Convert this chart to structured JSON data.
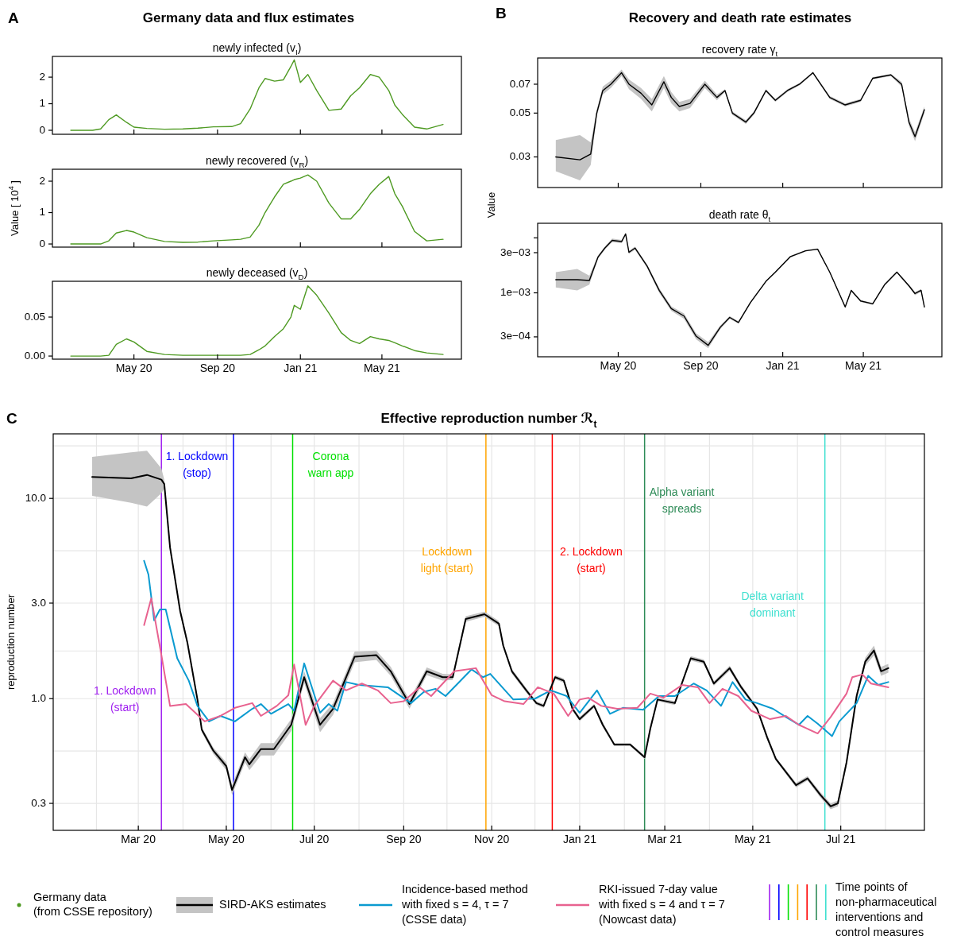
{
  "chart_data": [
    {
      "type": "line",
      "title": "newly infected (v$_{I}$)",
      "annotations": [
        "A",
        "Germany data and flux estimates"
      ],
      "legend": "bottom",
      "tick_labels": "y",
      "xlim": [
        "2020-01-02",
        "2021-08-26"
      ],
      "xticks": [
        {
          "value": "2020-05-01",
          "label": null
        },
        {
          "value": "2020-09-01",
          "label": null
        },
        {
          "value": "2021-01-01",
          "label": null
        },
        {
          "value": "2021-05-01",
          "label": null
        }
      ],
      "ylim": [
        -0.15,
        2.78
      ],
      "yticks": [
        0,
        1,
        2
      ],
      "x": [
        "2020-01-29",
        "2020-03-01",
        "2020-03-13",
        "2020-03-25",
        "2020-04-05",
        "2020-04-20",
        "2020-05-01",
        "2020-05-20",
        "2020-06-15",
        "2020-07-12",
        "2020-08-03",
        "2020-08-26",
        "2020-09-22",
        "2020-10-05",
        "2020-10-19",
        "2020-11-01",
        "2020-11-10",
        "2020-11-24",
        "2020-12-07",
        "2020-12-18",
        "2020-12-23",
        "2021-01-01",
        "2021-01-12",
        "2021-01-25",
        "2021-02-12",
        "2021-03-02",
        "2021-03-16",
        "2021-03-29",
        "2021-04-14",
        "2021-04-27",
        "2021-05-11",
        "2021-05-20",
        "2021-05-31",
        "2021-06-18",
        "2021-07-06",
        "2021-07-30"
      ],
      "series": [
        {
          "name": "Germany data\n(from CSSE repository)",
          "color": "#4e9a22",
          "values": [
            0,
            0,
            0.05,
            0.4,
            0.58,
            0.3,
            0.12,
            0.07,
            0.04,
            0.05,
            0.08,
            0.13,
            0.14,
            0.25,
            0.8,
            1.6,
            1.95,
            1.85,
            1.9,
            2.4,
            2.65,
            1.8,
            2.1,
            1.5,
            0.75,
            0.8,
            1.3,
            1.6,
            2.1,
            2.0,
            1.5,
            0.95,
            0.6,
            0.12,
            0.05,
            0.22
          ]
        }
      ]
    },
    {
      "type": "line",
      "title": "newly recovered (v$_{R}$)",
      "ylabel": "Value [ 10$^{4}$ ]",
      "tick_labels": "y",
      "xlim": [
        "2020-01-02",
        "2021-08-26"
      ],
      "xticks": [
        {
          "value": "2020-05-01",
          "label": null
        },
        {
          "value": "2020-09-01",
          "label": null
        },
        {
          "value": "2021-01-01",
          "label": null
        },
        {
          "value": "2021-05-01",
          "label": null
        }
      ],
      "ylim": [
        -0.1,
        2.38
      ],
      "yticks": [
        0,
        1,
        2
      ],
      "x": [
        "2020-01-29",
        "2020-03-01",
        "2020-03-13",
        "2020-03-25",
        "2020-04-05",
        "2020-04-20",
        "2020-05-01",
        "2020-05-20",
        "2020-06-15",
        "2020-07-12",
        "2020-08-03",
        "2020-08-26",
        "2020-09-22",
        "2020-10-05",
        "2020-10-19",
        "2020-11-01",
        "2020-11-10",
        "2020-11-24",
        "2020-12-07",
        "2020-12-18",
        "2020-12-23",
        "2021-01-01",
        "2021-01-12",
        "2021-01-25",
        "2021-02-12",
        "2021-03-02",
        "2021-03-16",
        "2021-03-29",
        "2021-04-14",
        "2021-04-27",
        "2021-05-11",
        "2021-05-20",
        "2021-05-31",
        "2021-06-18",
        "2021-07-06",
        "2021-07-30"
      ],
      "series": [
        {
          "color": "#4e9a22",
          "values": [
            0,
            0,
            0,
            0.1,
            0.35,
            0.43,
            0.38,
            0.2,
            0.08,
            0.05,
            0.06,
            0.1,
            0.13,
            0.15,
            0.22,
            0.6,
            1.0,
            1.5,
            1.9,
            2.0,
            2.05,
            2.1,
            2.2,
            2.0,
            1.3,
            0.8,
            0.8,
            1.1,
            1.6,
            1.9,
            2.15,
            1.6,
            1.2,
            0.4,
            0.1,
            0.15
          ]
        }
      ]
    },
    {
      "type": "line",
      "title": "newly deceased (v$_{D}$)",
      "xlim": [
        "2020-01-02",
        "2021-08-26"
      ],
      "xticks": [
        {
          "value": "2020-05-01",
          "label": "May 20"
        },
        {
          "value": "2020-09-01",
          "label": "Sep 20"
        },
        {
          "value": "2021-01-01",
          "label": "Jan 21"
        },
        {
          "value": "2021-05-01",
          "label": "May 21"
        }
      ],
      "ylim": [
        -0.004,
        0.0959
      ],
      "yticks": [
        {
          "value": 0,
          "label": "0.00"
        },
        {
          "value": 0.05,
          "label": "0.05"
        }
      ],
      "x": [
        "2020-01-29",
        "2020-03-01",
        "2020-03-13",
        "2020-03-25",
        "2020-04-05",
        "2020-04-20",
        "2020-05-01",
        "2020-05-20",
        "2020-06-15",
        "2020-07-12",
        "2020-08-03",
        "2020-08-26",
        "2020-09-22",
        "2020-10-05",
        "2020-10-19",
        "2020-11-01",
        "2020-11-10",
        "2020-11-24",
        "2020-12-07",
        "2020-12-18",
        "2020-12-23",
        "2021-01-01",
        "2021-01-12",
        "2021-01-25",
        "2021-02-12",
        "2021-03-02",
        "2021-03-16",
        "2021-03-29",
        "2021-04-14",
        "2021-04-27",
        "2021-05-11",
        "2021-05-20",
        "2021-05-31",
        "2021-06-18",
        "2021-07-06",
        "2021-07-30"
      ],
      "series": [
        {
          "color": "#4e9a22",
          "values": [
            0,
            0,
            0,
            0.001,
            0.015,
            0.022,
            0.018,
            0.006,
            0.002,
            0.001,
            0.001,
            0.001,
            0.001,
            0.001,
            0.002,
            0.008,
            0.013,
            0.025,
            0.035,
            0.05,
            0.065,
            0.06,
            0.09,
            0.078,
            0.055,
            0.03,
            0.02,
            0.016,
            0.025,
            0.022,
            0.02,
            0.017,
            0.013,
            0.007,
            0.004,
            0.002
          ]
        }
      ]
    },
    {
      "type": "line",
      "title": "recovery rate γ$_{t}$",
      "annotations": [
        "B",
        "Recovery and death rate estimates"
      ],
      "log": "y",
      "tick_labels": "y",
      "xlim": [
        "2020-01-02",
        "2021-08-26"
      ],
      "xticks": [
        {
          "value": "2020-05-01",
          "label": null
        },
        {
          "value": "2020-09-01",
          "label": null
        },
        {
          "value": "2021-01-01",
          "label": null
        },
        {
          "value": "2021-05-01",
          "label": null
        }
      ],
      "ylim": [
        0.021,
        0.095
      ],
      "yticks": [
        0.03,
        0.05,
        0.07
      ],
      "x": [
        "2020-01-29",
        "2020-03-05",
        "2020-03-21",
        "2020-03-30",
        "2020-04-08",
        "2020-04-20",
        "2020-05-06",
        "2020-05-17",
        "2020-06-04",
        "2020-06-20",
        "2020-07-08",
        "2020-07-19",
        "2020-07-31",
        "2020-08-16",
        "2020-09-07",
        "2020-09-25",
        "2020-10-07",
        "2020-10-18",
        "2020-11-07",
        "2020-11-19",
        "2020-12-07",
        "2020-12-21",
        "2021-01-08",
        "2021-01-26",
        "2021-02-15",
        "2021-03-12",
        "2021-04-04",
        "2021-04-27",
        "2021-05-15",
        "2021-06-11",
        "2021-06-27",
        "2021-07-08",
        "2021-07-17",
        "2021-07-31"
      ],
      "series": [
        {
          "color": "#000000",
          "values": [
            0.03,
            0.029,
            0.031,
            0.05,
            0.065,
            0.07,
            0.08,
            0.07,
            0.063,
            0.055,
            0.072,
            0.06,
            0.054,
            0.056,
            0.07,
            0.06,
            0.065,
            0.05,
            0.045,
            0.05,
            0.065,
            0.058,
            0.065,
            0.07,
            0.08,
            0.06,
            0.055,
            0.058,
            0.075,
            0.078,
            0.07,
            0.045,
            0.038,
            0.052
          ],
          "lower": [
            0.0254,
            0.0228,
            0.0273,
            0.048,
            0.062,
            0.067,
            0.077,
            0.066,
            0.059,
            0.051,
            0.067,
            0.056,
            0.051,
            0.053,
            0.067,
            0.058,
            0.064,
            0.049,
            0.044,
            0.049,
            0.064,
            0.057,
            0.064,
            0.069,
            0.079,
            0.059,
            0.054,
            0.057,
            0.074,
            0.077,
            0.068,
            0.043,
            0.036,
            0.05
          ],
          "upper": [
            0.0365,
            0.0387,
            0.0355,
            0.052,
            0.068,
            0.073,
            0.083,
            0.074,
            0.067,
            0.059,
            0.077,
            0.064,
            0.057,
            0.059,
            0.073,
            0.062,
            0.066,
            0.051,
            0.046,
            0.051,
            0.066,
            0.059,
            0.066,
            0.071,
            0.081,
            0.061,
            0.056,
            0.059,
            0.076,
            0.079,
            0.072,
            0.047,
            0.04,
            0.054
          ]
        }
      ]
    },
    {
      "type": "line",
      "title": "death rate θ$_{t}$",
      "ylabel": "Value",
      "log": "y",
      "xlim": [
        "2020-01-02",
        "2021-08-26"
      ],
      "xticks": [
        {
          "value": "2020-05-01",
          "label": "May 20"
        },
        {
          "value": "2020-09-01",
          "label": "Sep 20"
        },
        {
          "value": "2021-01-01",
          "label": "Jan 21"
        },
        {
          "value": "2021-05-01",
          "label": "May 21"
        }
      ],
      "ylim": [
        0.000174,
        0.0067
      ],
      "yticks": [
        {
          "value": 0.0003,
          "label": "3e−04"
        },
        {
          "value": 0.001,
          "label": "1e−03"
        },
        {
          "value": 0.003,
          "label": "3e−03"
        },
        {
          "value": 0.0045,
          "label": null
        }
      ],
      "x": [
        "2020-01-29",
        "2020-03-01",
        "2020-03-19",
        "2020-04-01",
        "2020-04-11",
        "2020-04-22",
        "2020-05-06",
        "2020-05-12",
        "2020-05-17",
        "2020-05-26",
        "2020-06-13",
        "2020-07-01",
        "2020-07-19",
        "2020-08-07",
        "2020-08-25",
        "2020-09-12",
        "2020-09-30",
        "2020-10-14",
        "2020-10-27",
        "2020-11-14",
        "2020-12-07",
        "2020-12-21",
        "2021-01-12",
        "2021-02-04",
        "2021-02-22",
        "2021-03-12",
        "2021-04-04",
        "2021-04-13",
        "2021-04-27",
        "2021-05-15",
        "2021-06-02",
        "2021-06-20",
        "2021-07-08",
        "2021-07-17",
        "2021-07-26",
        "2021-07-31"
      ],
      "series": [
        {
          "color": "#000000",
          "values": [
            0.00143,
            0.00143,
            0.0014,
            0.00267,
            0.0034,
            0.0042,
            0.00406,
            0.005,
            0.00303,
            0.0034,
            0.00208,
            0.00107,
            0.00065,
            0.00053,
            0.000306,
            0.000238,
            0.00039,
            0.00051,
            0.000445,
            0.00077,
            0.00137,
            0.00176,
            0.00268,
            0.00316,
            0.0033,
            0.00176,
            0.00068,
            0.00107,
            0.0008,
            0.00074,
            0.00126,
            0.00176,
            0.00121,
            0.00098,
            0.00107,
            0.00068
          ],
          "lower": [
            0.00116,
            0.00107,
            0.00125,
            0.00255,
            0.00325,
            0.004,
            0.0039,
            0.0048,
            0.0029,
            0.00325,
            0.00198,
            0.001,
            0.00061,
            0.00049,
            0.00028,
            0.00022,
            0.00037,
            0.00049,
            0.00043,
            0.00075,
            0.00134,
            0.00172,
            0.00262,
            0.0031,
            0.00323,
            0.00172,
            0.00066,
            0.00104,
            0.00078,
            0.00072,
            0.00123,
            0.00172,
            0.00117,
            0.00094,
            0.00103,
            0.00065
          ],
          "upper": [
            0.00176,
            0.00192,
            0.0016,
            0.0028,
            0.00355,
            0.0044,
            0.00425,
            0.0052,
            0.00315,
            0.00355,
            0.00218,
            0.00114,
            0.00069,
            0.00057,
            0.00033,
            0.00026,
            0.00041,
            0.00053,
            0.00046,
            0.00079,
            0.0014,
            0.0018,
            0.00274,
            0.00322,
            0.00337,
            0.0018,
            0.0007,
            0.0011,
            0.00082,
            0.00076,
            0.00129,
            0.0018,
            0.00125,
            0.00102,
            0.00111,
            0.00071
          ]
        }
      ]
    },
    {
      "type": "line",
      "title": "Effective reproduction number ℛ$_{t}$",
      "ylabel": "reproduction number",
      "annotations": [
        "C",
        "Time points of\nnon-pharmaceutical\ninterventions and\ncontrol measures"
      ],
      "log": "y",
      "grid": true,
      "legend": "bottom",
      "xlim": [
        "2020-01-02",
        "2021-08-28"
      ],
      "xticks": [
        {
          "value": "2020-02-01",
          "label": null
        },
        {
          "value": "2020-03-01",
          "label": "Mar 20"
        },
        {
          "value": "2020-04-01",
          "label": null
        },
        {
          "value": "2020-05-01",
          "label": "May 20"
        },
        {
          "value": "2020-06-01",
          "label": null
        },
        {
          "value": "2020-07-01",
          "label": "Jul 20"
        },
        {
          "value": "2020-08-01",
          "label": null
        },
        {
          "value": "2020-09-01",
          "label": "Sep 20"
        },
        {
          "value": "2020-10-01",
          "label": null
        },
        {
          "value": "2020-11-01",
          "label": "Nov 20"
        },
        {
          "value": "2020-12-01",
          "label": null
        },
        {
          "value": "2021-01-01",
          "label": "Jan 21"
        },
        {
          "value": "2021-02-01",
          "label": null
        },
        {
          "value": "2021-03-01",
          "label": "Mar 21"
        },
        {
          "value": "2021-04-01",
          "label": null
        },
        {
          "value": "2021-05-01",
          "label": "May 21"
        },
        {
          "value": "2021-06-01",
          "label": null
        },
        {
          "value": "2021-07-01",
          "label": "Jul 21"
        },
        {
          "value": "2021-08-01",
          "label": null
        }
      ],
      "ylim": [
        0.22,
        21
      ],
      "yticks": [
        0.3,
        {
          "value": 0.548,
          "label": null
        },
        {
          "value": 1,
          "label": "1.0"
        },
        {
          "value": 1.73,
          "label": null
        },
        {
          "value": 3,
          "label": "3.0"
        },
        {
          "value": 5.48,
          "label": null
        },
        {
          "value": 10,
          "label": "10.0"
        },
        {
          "value": 18.3,
          "label": null
        }
      ],
      "ref_lines": [
        {
          "axis": "x",
          "value": "2020-03-17",
          "label": "1. Lockdown\n(start)",
          "color": "#a020f0"
        },
        {
          "axis": "x",
          "value": "2020-05-06",
          "label": "1. Lockdown\n(stop)",
          "color": "#0000ff"
        },
        {
          "axis": "x",
          "value": "2020-06-16",
          "label": "Corona\nwarn app",
          "color": "#00e000"
        },
        {
          "axis": "x",
          "value": "2020-10-28",
          "label": "Lockdown\nlight (start)",
          "color": "#ffa500"
        },
        {
          "axis": "x",
          "value": "2020-12-13",
          "label": "2. Lockdown\n(start)",
          "color": "#ff0000"
        },
        {
          "axis": "x",
          "value": "2021-02-15",
          "label": "Alpha variant\nspreads",
          "color": "#2e8b57"
        },
        {
          "axis": "x",
          "value": "2021-06-20",
          "label": "Delta variant\ndominant",
          "color": "#40e0d0"
        }
      ],
      "series": [
        {
          "name": "SIRD-AKS estimates",
          "color": "#000000",
          "x": [
            "2020-01-29",
            "2020-02-25",
            "2020-03-07",
            "2020-03-17",
            "2020-03-19",
            "2020-03-23",
            "2020-03-30",
            "2020-04-04",
            "2020-04-11",
            "2020-04-14",
            "2020-04-22",
            "2020-05-01",
            "2020-05-05",
            "2020-05-14",
            "2020-05-17",
            "2020-05-25",
            "2020-06-03",
            "2020-06-15",
            "2020-06-24",
            "2020-07-05",
            "2020-07-14",
            "2020-07-29",
            "2020-08-13",
            "2020-08-23",
            "2020-09-05",
            "2020-09-17",
            "2020-09-28",
            "2020-10-05",
            "2020-10-14",
            "2020-10-27",
            "2020-11-06",
            "2020-11-09",
            "2020-11-15",
            "2020-11-25",
            "2020-12-02",
            "2020-12-07",
            "2020-12-15",
            "2020-12-21",
            "2020-12-27",
            "2021-01-01",
            "2021-01-11",
            "2021-01-17",
            "2021-01-25",
            "2021-02-05",
            "2021-02-15",
            "2021-02-19",
            "2021-02-24",
            "2021-03-08",
            "2021-03-19",
            "2021-03-28",
            "2021-04-04",
            "2021-04-15",
            "2021-04-23",
            "2021-05-04",
            "2021-05-11",
            "2021-05-17",
            "2021-05-31",
            "2021-06-08",
            "2021-06-17",
            "2021-06-24",
            "2021-06-29",
            "2021-07-05",
            "2021-07-12",
            "2021-07-18",
            "2021-07-24",
            "2021-07-29",
            "2021-08-03"
          ],
          "values": [
            12.8,
            12.6,
            13.1,
            12.4,
            11.8,
            5.69,
            2.74,
            1.91,
            0.99,
            0.7,
            0.55,
            0.46,
            0.35,
            0.51,
            0.47,
            0.56,
            0.56,
            0.74,
            1.28,
            0.74,
            0.89,
            1.62,
            1.65,
            1.37,
            0.94,
            1.37,
            1.28,
            1.28,
            2.5,
            2.64,
            2.37,
            1.84,
            1.37,
            1.1,
            0.95,
            0.92,
            1.28,
            1.23,
            0.89,
            0.79,
            0.92,
            0.74,
            0.59,
            0.59,
            0.51,
            0.71,
            0.99,
            0.95,
            1.59,
            1.53,
            1.19,
            1.42,
            1.14,
            0.89,
            0.64,
            0.5,
            0.37,
            0.4,
            0.33,
            0.29,
            0.3,
            0.48,
            1.03,
            1.53,
            1.74,
            1.37,
            1.42
          ],
          "lower": [
            10.3,
            9.5,
            9.1,
            10.6,
            11.2,
            5.5,
            2.65,
            1.85,
            0.96,
            0.68,
            0.53,
            0.44,
            0.33,
            0.48,
            0.44,
            0.52,
            0.52,
            0.69,
            1.2,
            0.68,
            0.83,
            1.52,
            1.56,
            1.3,
            0.89,
            1.31,
            1.23,
            1.24,
            2.42,
            2.56,
            2.3,
            1.79,
            1.33,
            1.07,
            0.93,
            0.9,
            1.25,
            1.2,
            0.87,
            0.77,
            0.9,
            0.72,
            0.58,
            0.58,
            0.5,
            0.69,
            0.97,
            0.93,
            1.55,
            1.49,
            1.16,
            1.38,
            1.11,
            0.87,
            0.62,
            0.49,
            0.36,
            0.39,
            0.32,
            0.28,
            0.29,
            0.46,
            0.99,
            1.46,
            1.64,
            1.3,
            1.35
          ],
          "upper": [
            16.1,
            17,
            17.3,
            14.1,
            12.4,
            5.9,
            2.83,
            1.97,
            1.02,
            0.72,
            0.57,
            0.48,
            0.37,
            0.54,
            0.5,
            0.6,
            0.6,
            0.79,
            1.37,
            0.8,
            0.95,
            1.72,
            1.74,
            1.44,
            0.99,
            1.43,
            1.33,
            1.32,
            2.58,
            2.72,
            2.44,
            1.89,
            1.41,
            1.13,
            0.97,
            0.94,
            1.31,
            1.26,
            0.91,
            0.81,
            0.94,
            0.76,
            0.6,
            0.6,
            0.52,
            0.73,
            1.01,
            0.97,
            1.63,
            1.57,
            1.22,
            1.46,
            1.17,
            0.91,
            0.66,
            0.51,
            0.38,
            0.41,
            0.34,
            0.3,
            0.31,
            0.5,
            1.07,
            1.6,
            1.84,
            1.44,
            1.49
          ]
        },
        {
          "name": "Incidence-based method\nwith fixed s = 4, τ = 7\n(CSSE data)",
          "color": "#0a9ad0",
          "x": [
            "2020-03-05",
            "2020-03-08",
            "2020-03-12",
            "2020-03-16",
            "2020-03-20",
            "2020-03-28",
            "2020-04-05",
            "2020-04-11",
            "2020-04-19",
            "2020-04-27",
            "2020-05-07",
            "2020-05-19",
            "2020-05-25",
            "2020-06-01",
            "2020-06-13",
            "2020-06-17",
            "2020-06-24",
            "2020-07-05",
            "2020-07-11",
            "2020-07-17",
            "2020-07-23",
            "2020-08-01",
            "2020-08-21",
            "2020-09-06",
            "2020-09-15",
            "2020-09-23",
            "2020-09-30",
            "2020-10-18",
            "2020-10-26",
            "2020-10-31",
            "2020-11-16",
            "2020-12-01",
            "2020-12-12",
            "2020-12-23",
            "2021-01-01",
            "2021-01-13",
            "2021-01-22",
            "2021-01-31",
            "2021-02-14",
            "2021-02-25",
            "2021-03-08",
            "2021-03-21",
            "2021-03-30",
            "2021-04-09",
            "2021-04-17",
            "2021-04-26",
            "2021-05-04",
            "2021-05-15",
            "2021-05-24",
            "2021-06-02",
            "2021-06-08",
            "2021-06-15",
            "2021-06-25",
            "2021-06-30",
            "2021-07-12",
            "2021-07-20",
            "2021-07-27",
            "2021-08-03"
          ],
          "values": [
            4.88,
            4.17,
            2.46,
            2.79,
            2.79,
            1.59,
            1.23,
            0.92,
            0.77,
            0.82,
            0.77,
            0.89,
            0.94,
            0.84,
            0.94,
            0.87,
            1.5,
            0.85,
            0.94,
            0.87,
            1.21,
            1.17,
            1.14,
            0.95,
            1.08,
            1.12,
            1.03,
            1.4,
            1.28,
            1.33,
            0.99,
            1.0,
            1.1,
            1.03,
            0.85,
            1.1,
            0.84,
            0.9,
            0.88,
            1.03,
            1.03,
            1.19,
            1.1,
            0.92,
            1.21,
            0.99,
            0.95,
            0.89,
            0.81,
            0.74,
            0.82,
            0.75,
            0.65,
            0.77,
            0.95,
            1.3,
            1.17,
            1.21
          ]
        },
        {
          "name": "RKI-issued 7-day value\nwith fixed s = 4 and τ = 7\n(Nowcast data)",
          "color": "#e8628f",
          "x": [
            "2020-03-05",
            "2020-03-10",
            "2020-03-17",
            "2020-03-23",
            "2020-04-03",
            "2020-04-16",
            "2020-04-27",
            "2020-05-07",
            "2020-05-19",
            "2020-05-25",
            "2020-06-05",
            "2020-06-13",
            "2020-06-17",
            "2020-06-25",
            "2020-07-01",
            "2020-07-14",
            "2020-07-23",
            "2020-08-03",
            "2020-08-14",
            "2020-08-23",
            "2020-09-01",
            "2020-09-12",
            "2020-09-20",
            "2020-10-06",
            "2020-10-21",
            "2020-11-01",
            "2020-11-10",
            "2020-11-23",
            "2020-12-03",
            "2020-12-14",
            "2020-12-24",
            "2021-01-01",
            "2021-01-07",
            "2021-01-16",
            "2021-01-27",
            "2021-02-10",
            "2021-02-19",
            "2021-02-28",
            "2021-03-13",
            "2021-03-24",
            "2021-04-01",
            "2021-04-10",
            "2021-04-21",
            "2021-04-30",
            "2021-05-13",
            "2021-05-24",
            "2021-06-02",
            "2021-06-15",
            "2021-06-24",
            "2021-07-05",
            "2021-07-09",
            "2021-07-16",
            "2021-07-22",
            "2021-08-03"
          ],
          "values": [
            2.33,
            3.17,
            1.65,
            0.92,
            0.94,
            0.77,
            0.82,
            0.9,
            0.95,
            0.82,
            0.92,
            1.04,
            1.48,
            0.74,
            0.92,
            1.23,
            1.1,
            1.19,
            1.1,
            0.95,
            0.97,
            1.14,
            1.03,
            1.37,
            1.42,
            1.04,
            0.97,
            0.94,
            1.14,
            1.06,
            0.82,
            0.99,
            1.01,
            0.92,
            0.89,
            0.9,
            1.06,
            1.01,
            1.17,
            1.14,
            0.95,
            1.12,
            1.03,
            0.87,
            0.79,
            0.82,
            0.74,
            0.67,
            0.81,
            1.06,
            1.28,
            1.32,
            1.19,
            1.14
          ]
        }
      ]
    }
  ]
}
